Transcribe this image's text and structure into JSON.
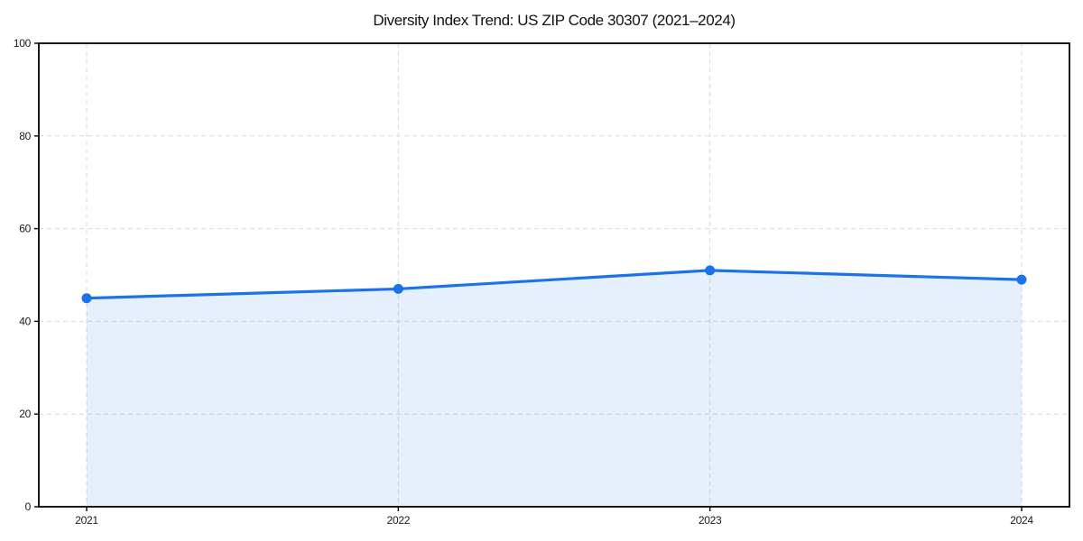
{
  "chart_data": {
    "type": "area",
    "title": "Diversity Index Trend: US ZIP Code 30307 (2021–2024)",
    "xlabel": "",
    "ylabel": "",
    "x": [
      "2021",
      "2022",
      "2023",
      "2024"
    ],
    "series": [
      {
        "name": "Diversity Index",
        "values": [
          45,
          47,
          51,
          49
        ]
      }
    ],
    "ylim": [
      0,
      100
    ],
    "yticks": [
      0,
      20,
      40,
      60,
      80,
      100
    ],
    "xticks": [
      "2021",
      "2022",
      "2023",
      "2024"
    ],
    "grid": "both-dashed",
    "legend": "none",
    "colors": {
      "line": "#1a73e8",
      "marker": "#1a73e8",
      "fill": "rgba(26,115,232,0.11)",
      "gridline": "#d9d9d9",
      "spine": "#000000",
      "tick_text": "#1a1a1a",
      "title_text": "#111111",
      "background": "#ffffff"
    }
  }
}
